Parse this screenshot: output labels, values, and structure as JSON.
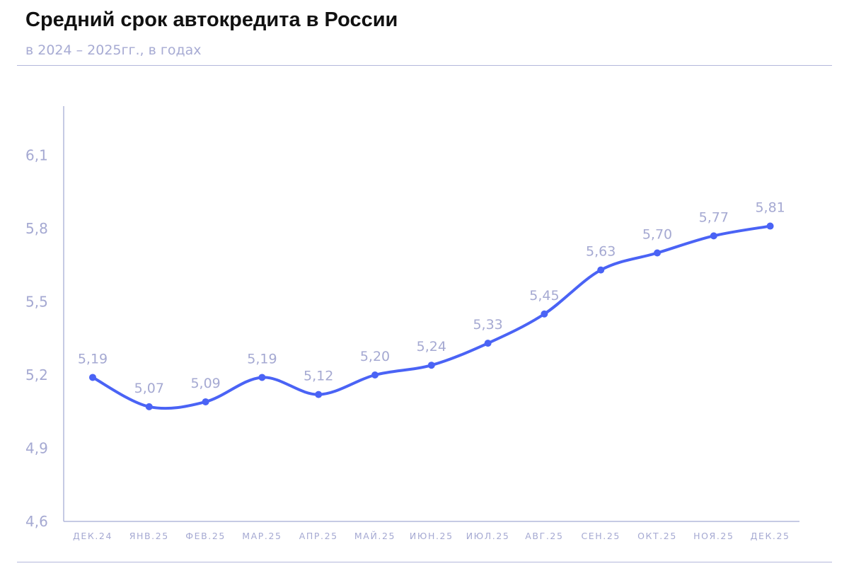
{
  "header": {
    "title": "Средний срок автокредита в России",
    "subtitle": "в 2024 – 2025гг., в годах"
  },
  "colors": {
    "line": "#4a63f5",
    "axis": "#b4b8dc",
    "muted_text": "#a5a9d2"
  },
  "chart_data": {
    "type": "line",
    "title": "Средний срок автокредита в России",
    "subtitle": "в 2024 – 2025гг., в годах",
    "xlabel": "",
    "ylabel": "",
    "categories": [
      "ДЕК.24",
      "ЯНВ.25",
      "ФЕВ.25",
      "МАР.25",
      "АПР.25",
      "МАЙ.25",
      "ИЮН.25",
      "ИЮЛ.25",
      "АВГ.25",
      "СЕН.25",
      "ОКТ.25",
      "НОЯ.25",
      "ДЕК.25"
    ],
    "values": [
      5.19,
      5.07,
      5.09,
      5.19,
      5.12,
      5.2,
      5.24,
      5.33,
      5.45,
      5.63,
      5.7,
      5.77,
      5.81
    ],
    "data_labels": [
      "5,19",
      "5,07",
      "5,09",
      "5,19",
      "5,12",
      "5,20",
      "5,24",
      "5,33",
      "5,45",
      "5,63",
      "5,70",
      "5,77",
      "5,81"
    ],
    "y_ticks": [
      4.6,
      4.9,
      5.2,
      5.5,
      5.8,
      6.1
    ],
    "y_tick_labels": [
      "4,6",
      "4,9",
      "5,2",
      "5,5",
      "5,8",
      "6,1"
    ],
    "ylim": [
      4.6,
      6.3
    ],
    "grid": false,
    "legend": "none"
  }
}
